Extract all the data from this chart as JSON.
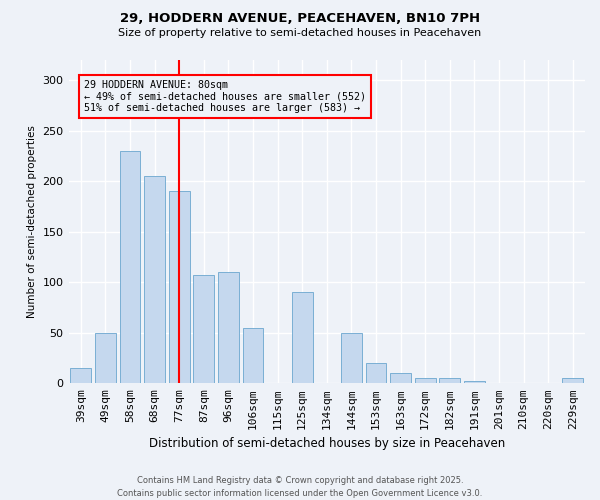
{
  "title1": "29, HODDERN AVENUE, PEACEHAVEN, BN10 7PH",
  "title2": "Size of property relative to semi-detached houses in Peacehaven",
  "xlabel": "Distribution of semi-detached houses by size in Peacehaven",
  "ylabel": "Number of semi-detached properties",
  "categories": [
    "39sqm",
    "49sqm",
    "58sqm",
    "68sqm",
    "77sqm",
    "87sqm",
    "96sqm",
    "106sqm",
    "115sqm",
    "125sqm",
    "134sqm",
    "144sqm",
    "153sqm",
    "163sqm",
    "172sqm",
    "182sqm",
    "191sqm",
    "201sqm",
    "210sqm",
    "220sqm",
    "229sqm"
  ],
  "values": [
    15,
    50,
    230,
    205,
    190,
    107,
    110,
    55,
    0,
    90,
    0,
    50,
    20,
    10,
    5,
    5,
    2,
    0,
    0,
    0,
    5
  ],
  "bar_color": "#c5d8ee",
  "bar_edge_color": "#7aafd4",
  "vline_x_index": 4,
  "annotation_text": "29 HODDERN AVENUE: 80sqm\n← 49% of semi-detached houses are smaller (552)\n51% of semi-detached houses are larger (583) →",
  "ylim": [
    0,
    320
  ],
  "yticks": [
    0,
    50,
    100,
    150,
    200,
    250,
    300
  ],
  "footnote1": "Contains HM Land Registry data © Crown copyright and database right 2025.",
  "footnote2": "Contains public sector information licensed under the Open Government Licence v3.0.",
  "bg_color": "#eef2f8"
}
